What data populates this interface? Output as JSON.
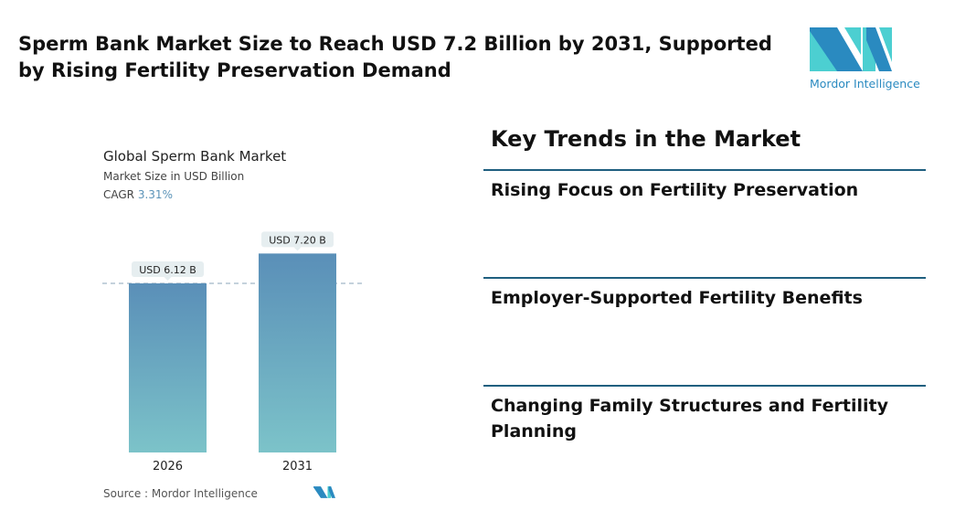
{
  "header": {
    "title": "Sperm Bank Market Size to Reach USD 7.2 Billion by 2031, Supported by Rising Fertility Preservation Demand"
  },
  "logo": {
    "text": "Mordor Intelligence",
    "colors": [
      "#2a8ac0",
      "#4ccfd1"
    ]
  },
  "chart_data": {
    "type": "bar",
    "title": "Global Sperm Bank Market",
    "subtitle": "Market Size in USD Billion",
    "cagr_label": "CAGR",
    "cagr_value": "3.31%",
    "categories": [
      "2026",
      "2031"
    ],
    "values": [
      6.12,
      7.2
    ],
    "data_labels": [
      "USD 6.12 B",
      "USD 7.20 B"
    ],
    "ylim": [
      0,
      7.5
    ],
    "grid": false,
    "reference_line": 6.12,
    "colors": {
      "bar_top": "#5a8fb8",
      "bar_bottom": "#7cc3c9",
      "label_bg": "#e6eef0"
    }
  },
  "source": "Source :  Mordor Intelligence",
  "trends": {
    "heading": "Key Trends in the Market",
    "items": [
      "Rising Focus on Fertility Preservation",
      "Employer-Supported Fertility Benefits",
      "Changing Family Structures and Fertility Planning"
    ]
  }
}
